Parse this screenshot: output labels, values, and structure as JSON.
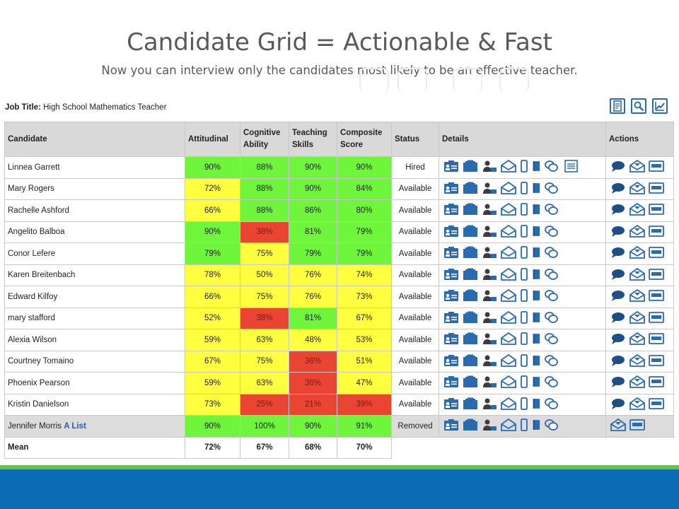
{
  "slide": {
    "title": "Candidate Grid = Actionable & Fast",
    "subtitle": "Now you can interview only the candidates most likely to be an effective teacher."
  },
  "job": {
    "label": "Job Title:",
    "value": "High School Mathematics Teacher"
  },
  "toolbar": {
    "icons": [
      "report-icon",
      "search-settings-icon",
      "chart-icon"
    ]
  },
  "columns": {
    "candidate": "Candidate",
    "attitudinal": "Attitudinal",
    "cognitive": [
      "Cognitive",
      "Ability"
    ],
    "teaching": [
      "Teaching",
      "Skills"
    ],
    "composite": [
      "Composite",
      "Score"
    ],
    "status": "Status",
    "details": "Details",
    "actions": "Actions"
  },
  "colors": {
    "green": "#6ef53c",
    "yellow": "#ffff40",
    "red": "#ea4433",
    "icon": "#2a6bb0",
    "bar": "#0b6eb5"
  },
  "rows": [
    {
      "name": "Linnea Garrett",
      "tag": "",
      "vals": [
        "90%",
        "88%",
        "90%",
        "90%"
      ],
      "c": [
        "g",
        "g",
        "g",
        "g"
      ],
      "status": "Hired"
    },
    {
      "name": "Mary Rogers",
      "tag": "",
      "vals": [
        "72%",
        "88%",
        "90%",
        "84%"
      ],
      "c": [
        "y",
        "g",
        "g",
        "g"
      ],
      "status": "Available"
    },
    {
      "name": "Rachelle Ashford",
      "tag": "",
      "vals": [
        "66%",
        "88%",
        "86%",
        "80%"
      ],
      "c": [
        "y",
        "g",
        "g",
        "g"
      ],
      "status": "Available"
    },
    {
      "name": "Angelito Balboa",
      "tag": "",
      "vals": [
        "90%",
        "38%",
        "81%",
        "79%"
      ],
      "c": [
        "g",
        "r",
        "g",
        "g"
      ],
      "status": "Available"
    },
    {
      "name": "Conor Lefere",
      "tag": "",
      "vals": [
        "79%",
        "75%",
        "79%",
        "79%"
      ],
      "c": [
        "g",
        "y",
        "g",
        "g"
      ],
      "status": "Available"
    },
    {
      "name": "Karen Breitenbach",
      "tag": "",
      "vals": [
        "78%",
        "50%",
        "76%",
        "74%"
      ],
      "c": [
        "y",
        "y",
        "y",
        "y"
      ],
      "status": "Available"
    },
    {
      "name": "Edward Kilfoy",
      "tag": "",
      "vals": [
        "66%",
        "75%",
        "76%",
        "73%"
      ],
      "c": [
        "y",
        "y",
        "y",
        "y"
      ],
      "status": "Available"
    },
    {
      "name": "mary stafford",
      "tag": "",
      "vals": [
        "52%",
        "38%",
        "81%",
        "67%"
      ],
      "c": [
        "y",
        "r",
        "g",
        "y"
      ],
      "status": "Available"
    },
    {
      "name": "Alexia Wilson",
      "tag": "",
      "vals": [
        "59%",
        "63%",
        "48%",
        "53%"
      ],
      "c": [
        "y",
        "y",
        "y",
        "y"
      ],
      "status": "Available"
    },
    {
      "name": "Courtney Tomaino",
      "tag": "",
      "vals": [
        "67%",
        "75%",
        "36%",
        "51%"
      ],
      "c": [
        "y",
        "y",
        "r",
        "y"
      ],
      "status": "Available"
    },
    {
      "name": "Phoenix Pearson",
      "tag": "",
      "vals": [
        "59%",
        "63%",
        "36%",
        "47%"
      ],
      "c": [
        "y",
        "y",
        "r",
        "y"
      ],
      "status": "Available"
    },
    {
      "name": "Kristin Danielson",
      "tag": "",
      "vals": [
        "73%",
        "25%",
        "21%",
        "39%"
      ],
      "c": [
        "y",
        "r",
        "r",
        "r"
      ],
      "status": "Available"
    },
    {
      "name": "Jennifer Morris",
      "tag": "A List",
      "vals": [
        "90%",
        "100%",
        "90%",
        "91%"
      ],
      "c": [
        "g",
        "g",
        "g",
        "g"
      ],
      "status": "Removed"
    }
  ],
  "mean": {
    "label": "Mean",
    "vals": [
      "72%",
      "67%",
      "68%",
      "70%"
    ]
  },
  "detail_icons": [
    "profile-card-icon",
    "portfolio-icon",
    "reference-person-icon",
    "email-open-icon",
    "mobile-phone-icon",
    "document-icon",
    "coins-icon",
    "notes-icon"
  ],
  "action_icons": [
    "chat-icon",
    "send-email-icon",
    "card-icon"
  ]
}
